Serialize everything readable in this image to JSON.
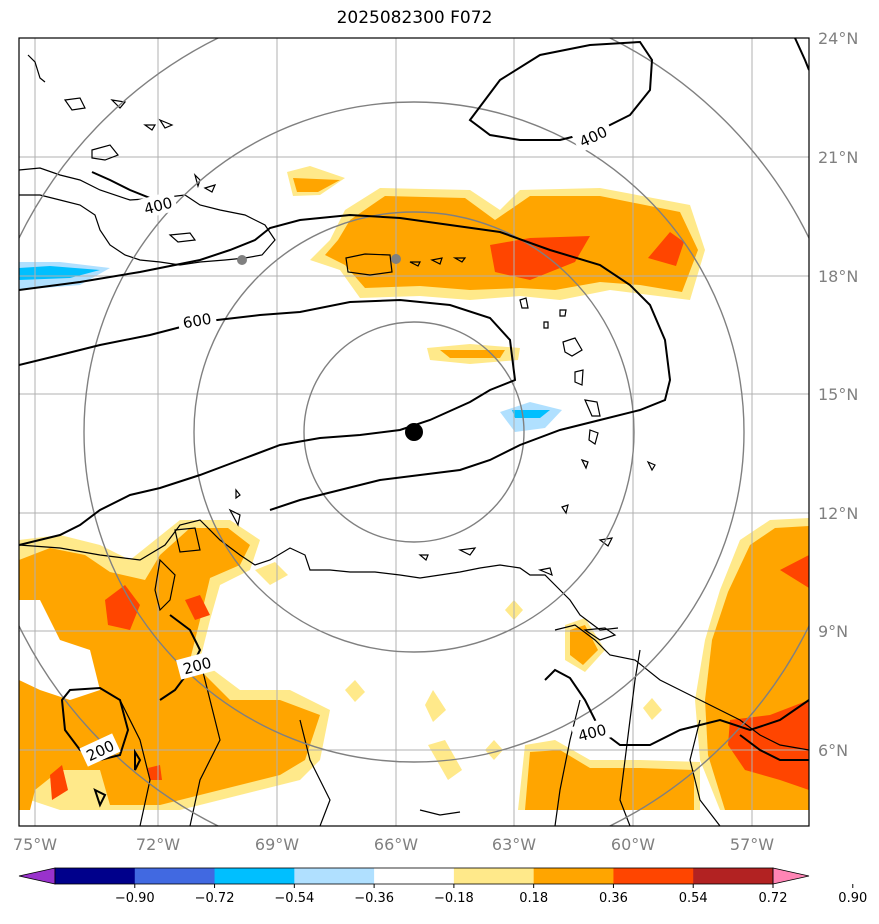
{
  "title": "2025082300 F072",
  "latitudes": [
    "24°N",
    "21°N",
    "18°N",
    "15°N",
    "12°N",
    "9°N",
    "6°N"
  ],
  "longitudes": [
    "75°W",
    "72°W",
    "69°W",
    "66°W",
    "63°W",
    "60°W",
    "57°W"
  ],
  "contour_labels": [
    "400",
    "600",
    "200",
    "200",
    "400",
    "400"
  ],
  "colorbar": {
    "labels": [
      "−0.90",
      "−0.72",
      "−0.54",
      "−0.36",
      "−0.18",
      "0.18",
      "0.36",
      "0.54",
      "0.72",
      "0.90"
    ],
    "colors": [
      "#9932cc",
      "#00008b",
      "#4169e1",
      "#00bfff",
      "#b0e0ff",
      "#ffffff",
      "#ffe98a",
      "#ffa500",
      "#ff4500",
      "#b22222",
      "#ff85b5"
    ]
  },
  "colors": {
    "light_yellow": "#ffe98a",
    "orange": "#ffa500",
    "red_orange": "#ff4500",
    "light_blue": "#b0e0ff",
    "cyan": "#00bfff"
  },
  "center_marker": "storm-center-dot"
}
